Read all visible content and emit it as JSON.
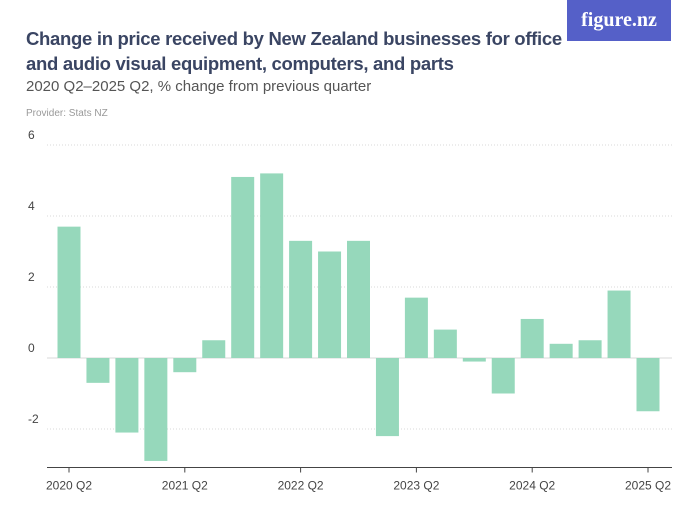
{
  "header": {
    "title": "Change in price received by New Zealand businesses for office and audio visual equipment, computers, and parts",
    "subtitle": "2020 Q2–2025 Q2, % change from previous quarter",
    "provider": "Provider: Stats NZ",
    "logo": "figure.nz"
  },
  "colors": {
    "bar": "#96d8bb",
    "logo_bg": "#5560c8"
  },
  "chart_data": {
    "type": "bar",
    "categories": [
      "2020 Q2",
      "2020 Q3",
      "2020 Q4",
      "2021 Q1",
      "2021 Q2",
      "2021 Q3",
      "2021 Q4",
      "2022 Q1",
      "2022 Q2",
      "2022 Q3",
      "2022 Q4",
      "2023 Q1",
      "2023 Q2",
      "2023 Q3",
      "2023 Q4",
      "2024 Q1",
      "2024 Q2",
      "2024 Q3",
      "2024 Q4",
      "2025 Q1",
      "2025 Q2"
    ],
    "values": [
      3.7,
      -0.7,
      -2.1,
      -2.9,
      -0.4,
      0.5,
      5.1,
      5.2,
      3.3,
      3.0,
      3.3,
      -2.2,
      1.7,
      0.8,
      -0.1,
      -1.0,
      1.1,
      0.4,
      0.5,
      1.9,
      -1.5
    ],
    "x_tick_labels": [
      "2020 Q2",
      "2021 Q2",
      "2022 Q2",
      "2023 Q2",
      "2024 Q2",
      "2025 Q2"
    ],
    "y_ticks": [
      -2,
      0,
      2,
      4,
      6
    ],
    "ylim": [
      -3,
      6
    ],
    "grid": true,
    "xlabel": "",
    "ylabel": ""
  }
}
